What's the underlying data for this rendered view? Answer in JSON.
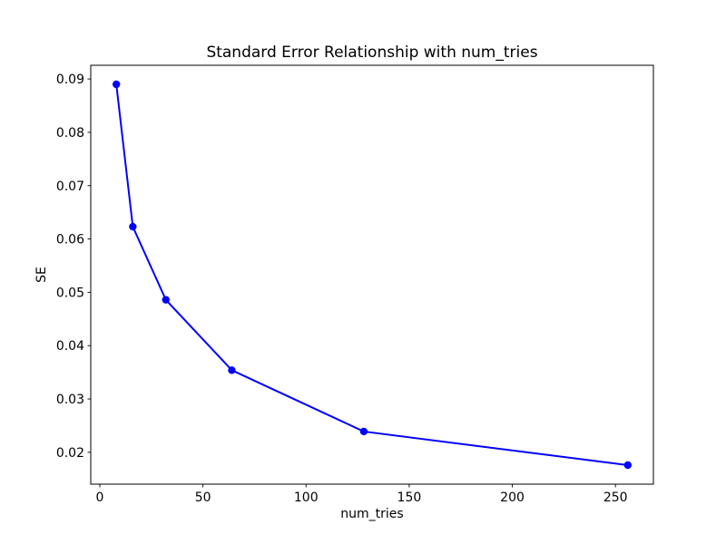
{
  "chart_data": {
    "type": "line",
    "title": "Standard Error Relationship with num_tries",
    "xlabel": "num_tries",
    "ylabel": "SE",
    "x": [
      8,
      16,
      32,
      64,
      128,
      256
    ],
    "y": [
      0.089,
      0.0623,
      0.0486,
      0.0354,
      0.0239,
      0.0176
    ],
    "series_color": "#0000ff",
    "marker": "o",
    "line_style": "solid",
    "xticks": [
      0,
      50,
      100,
      150,
      200,
      250
    ],
    "yticks": [
      0.02,
      0.03,
      0.04,
      0.05,
      0.06,
      0.07,
      0.08,
      0.09
    ],
    "xlim": [
      -4.4,
      268.4
    ],
    "ylim": [
      0.01403,
      0.09257
    ],
    "grid": false,
    "legend_position": "none",
    "background_color": "#ffffff",
    "spine_color": "#000000"
  }
}
